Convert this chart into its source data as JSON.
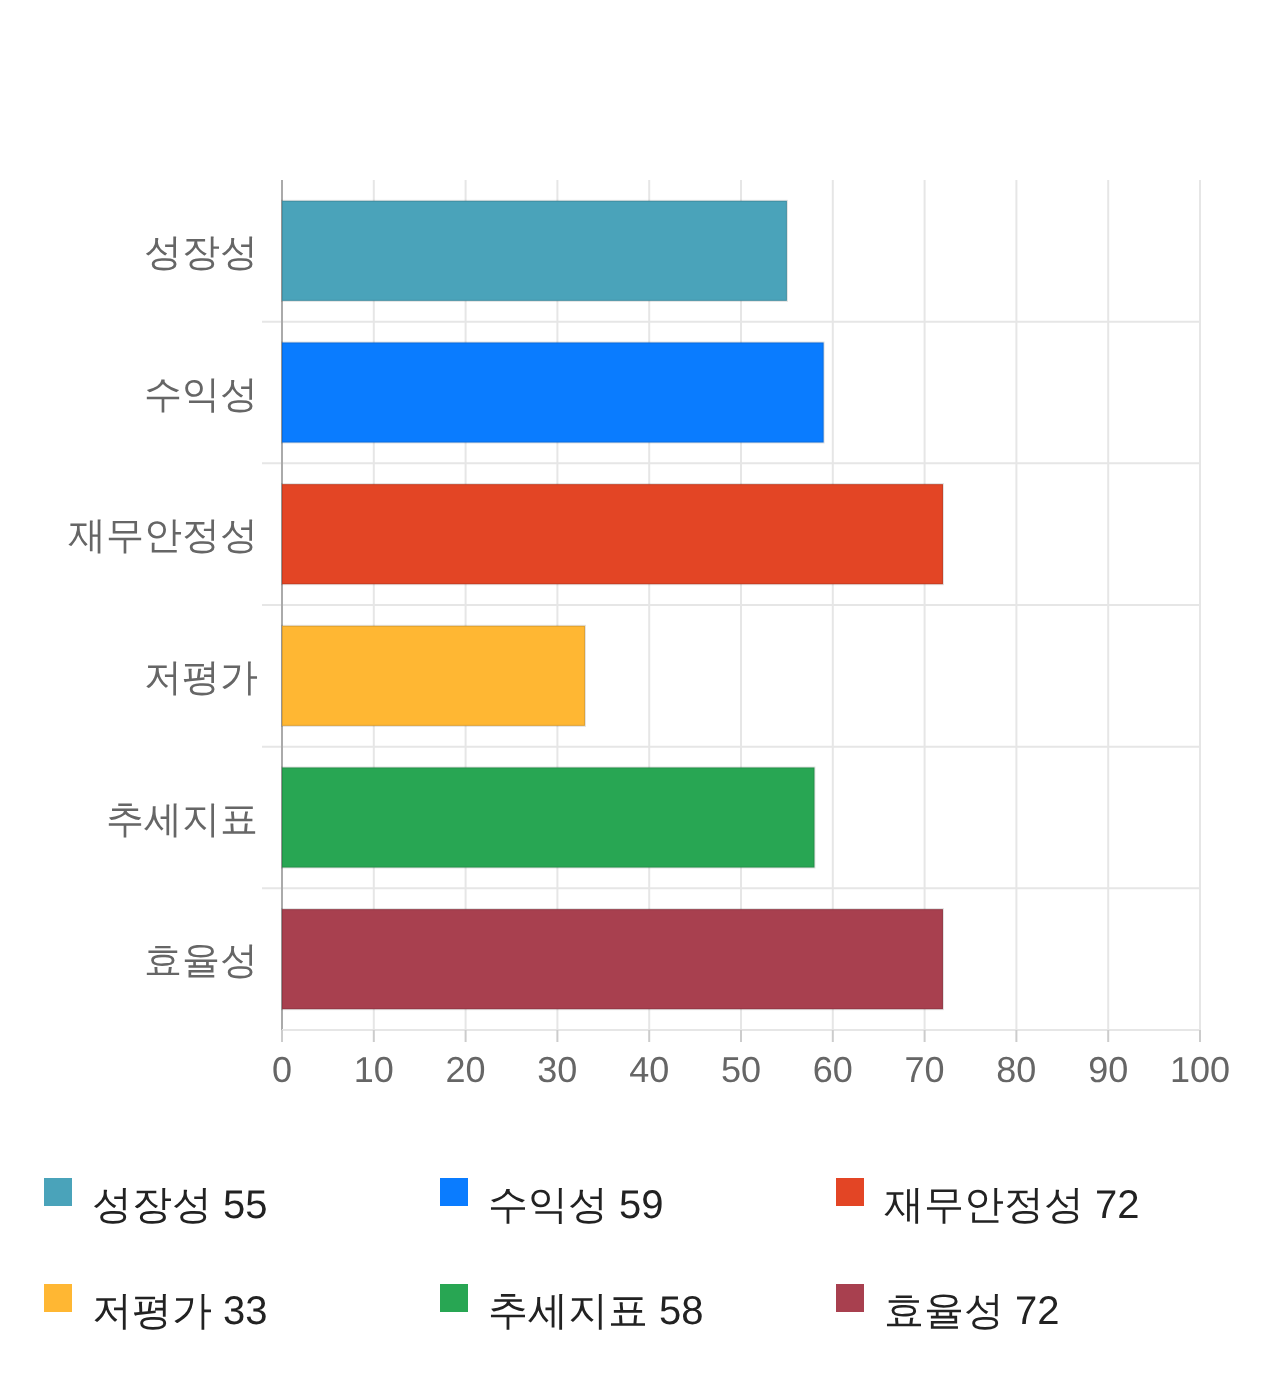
{
  "chart_data": {
    "type": "bar",
    "orientation": "horizontal",
    "categories": [
      "성장성",
      "수익성",
      "재무안정성",
      "저평가",
      "추세지표",
      "효율성"
    ],
    "series": [
      {
        "name": "성장성 55",
        "color": "#4aa3ba",
        "values": [
          55,
          null,
          null,
          null,
          null,
          null
        ]
      },
      {
        "name": "수익성 59",
        "color": "#0a7cff",
        "values": [
          null,
          59,
          null,
          null,
          null,
          null
        ]
      },
      {
        "name": "재무안정성 72",
        "color": "#e34525",
        "values": [
          null,
          null,
          72,
          null,
          null,
          null
        ]
      },
      {
        "name": "저평가 33",
        "color": "#ffb733",
        "values": [
          null,
          null,
          null,
          33,
          null,
          null
        ]
      },
      {
        "name": "추세지표 58",
        "color": "#28a653",
        "values": [
          null,
          null,
          null,
          null,
          58,
          null
        ]
      },
      {
        "name": "효율성 72",
        "color": "#a8404f",
        "values": [
          null,
          null,
          null,
          null,
          null,
          72
        ]
      }
    ],
    "xlim": [
      0,
      100
    ],
    "xticks": [
      0,
      10,
      20,
      30,
      40,
      50,
      60,
      70,
      80,
      90,
      100
    ],
    "grid": true,
    "legend": "bottom"
  }
}
